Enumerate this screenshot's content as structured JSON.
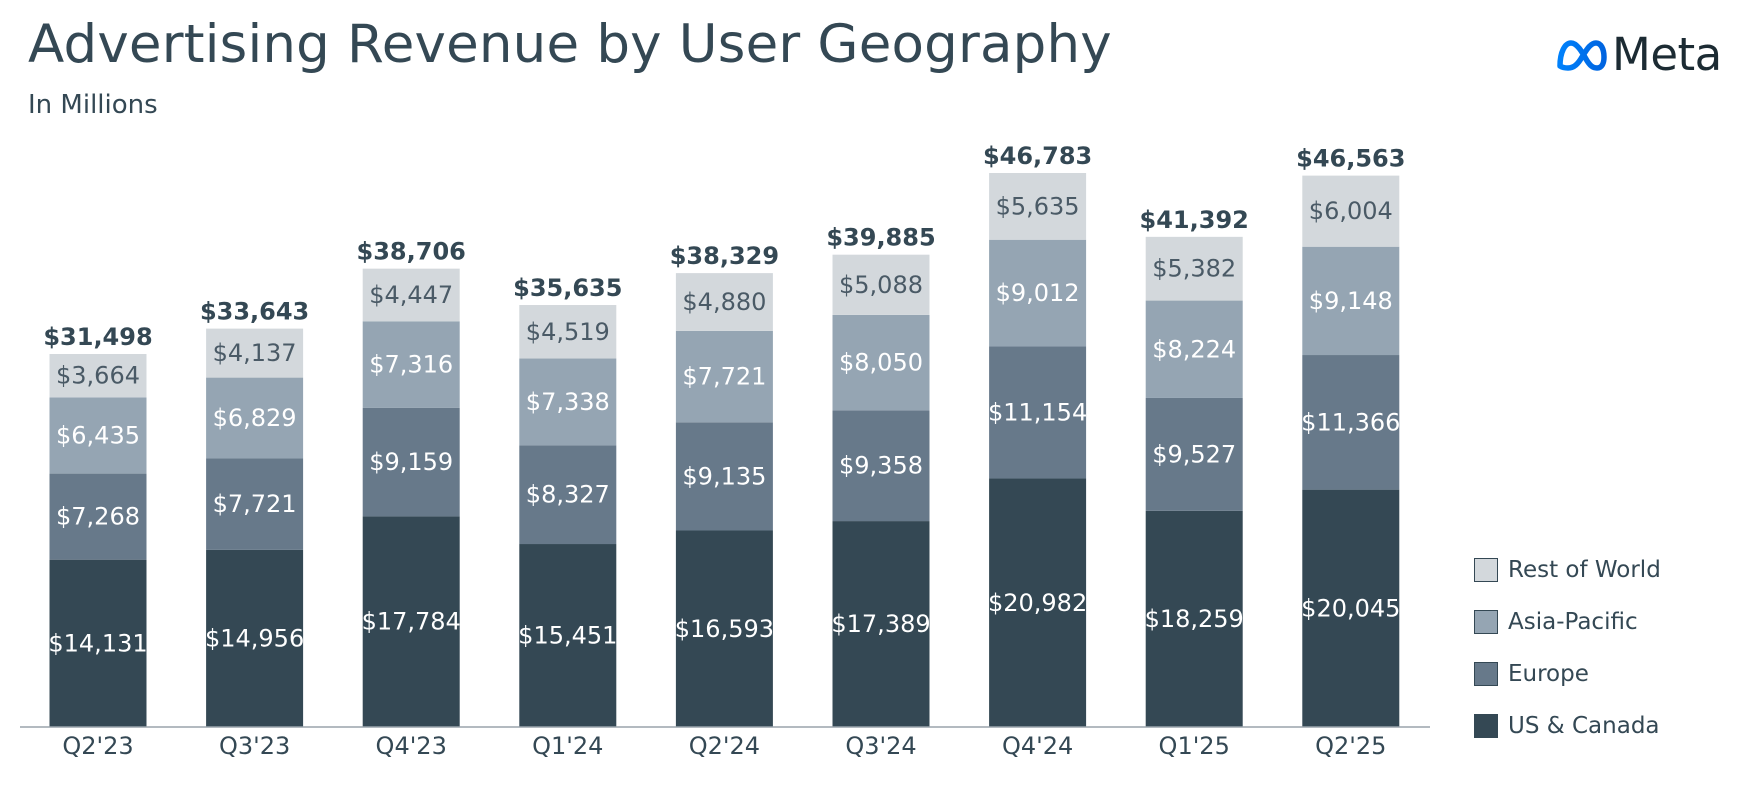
{
  "header": {
    "title": "Advertising Revenue by User Geography",
    "subtitle": "In Millions",
    "logo_text": "Meta"
  },
  "colors": {
    "us_canada": "#344854",
    "europe": "#67798a",
    "asia_pacific": "#95a5b3",
    "rest_of_world": "#d3d8dc",
    "axis": "#9aa4ab",
    "text_dark": "#344854",
    "logo_blue": "#0668e1"
  },
  "chart_data": {
    "type": "bar",
    "stacked": true,
    "title": "Advertising Revenue by User Geography",
    "subtitle": "In Millions",
    "categories": [
      "Q2'23",
      "Q3'23",
      "Q4'23",
      "Q1'24",
      "Q2'24",
      "Q3'24",
      "Q4'24",
      "Q1'25",
      "Q2'25"
    ],
    "series": [
      {
        "name": "US & Canada",
        "color": "#344854",
        "label_color": "#ffffff",
        "values": [
          14131,
          14956,
          17784,
          15451,
          16593,
          17389,
          20982,
          18259,
          20045
        ],
        "labels": [
          "$14,131",
          "$14,956",
          "$17,784",
          "$15,451",
          "$16,593",
          "$17,389",
          "$20,982",
          "$18,259",
          "$20,045"
        ]
      },
      {
        "name": "Europe",
        "color": "#67798a",
        "label_color": "#ffffff",
        "values": [
          7268,
          7721,
          9159,
          8327,
          9135,
          9358,
          11154,
          9527,
          11366
        ],
        "labels": [
          "$7,268",
          "$7,721",
          "$9,159",
          "$8,327",
          "$9,135",
          "$9,358",
          "$11,154",
          "$9,527",
          "$11,366"
        ]
      },
      {
        "name": "Asia-Pacific",
        "color": "#95a5b3",
        "label_color": "#ffffff",
        "values": [
          6435,
          6829,
          7316,
          7338,
          7721,
          8050,
          9012,
          8224,
          9148
        ],
        "labels": [
          "$6,435",
          "$6,829",
          "$7,316",
          "$7,338",
          "$7,721",
          "$8,050",
          "$9,012",
          "$8,224",
          "$9,148"
        ]
      },
      {
        "name": "Rest of World",
        "color": "#d3d8dc",
        "label_color": "#4a5a66",
        "values": [
          3664,
          4137,
          4447,
          4519,
          4880,
          5088,
          5635,
          5382,
          6004
        ],
        "labels": [
          "$3,664",
          "$4,137",
          "$4,447",
          "$4,519",
          "$4,880",
          "$5,088",
          "$5,635",
          "$5,382",
          "$6,004"
        ]
      }
    ],
    "totals": [
      31498,
      33643,
      38706,
      35635,
      38329,
      39885,
      46783,
      41392,
      46563
    ],
    "total_labels": [
      "$31,498",
      "$33,643",
      "$38,706",
      "$35,635",
      "$38,329",
      "$39,885",
      "$46,783",
      "$41,392",
      "$46,563"
    ],
    "legend_order": [
      "Rest of World",
      "Asia-Pacific",
      "Europe",
      "US & Canada"
    ],
    "legend_position": "right",
    "grid": false,
    "ylim": [
      0,
      46783
    ]
  }
}
